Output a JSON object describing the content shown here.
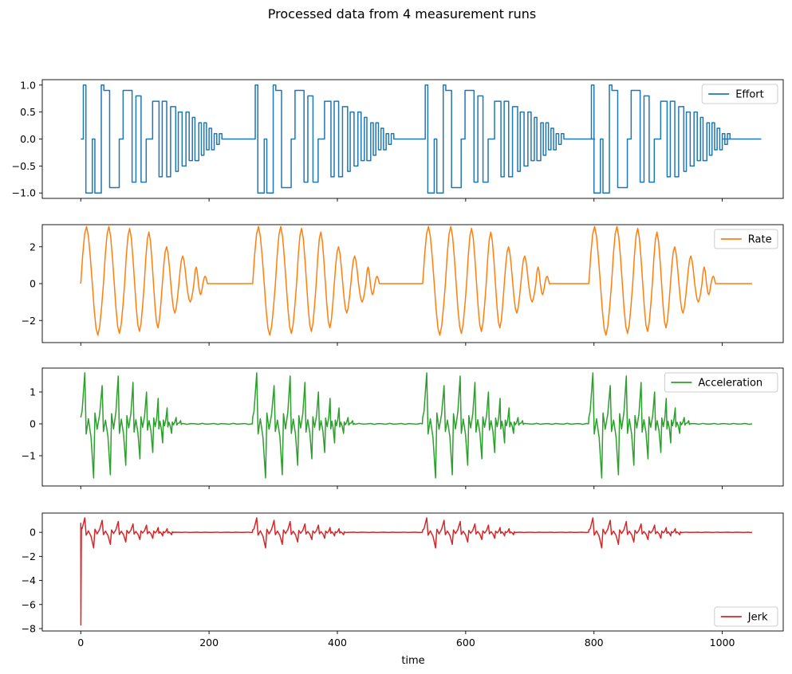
{
  "chart_data": {
    "type": "line",
    "title": "Processed data from 4 measurement runs",
    "xlabel": "time",
    "xlim": [
      -60,
      1095
    ],
    "xticks": [
      0,
      200,
      400,
      600,
      800,
      1000
    ],
    "xtick_labels": [
      "0",
      "200",
      "400",
      "600",
      "800",
      "1000"
    ],
    "runs": 4,
    "run_starts": [
      0,
      268,
      533,
      792
    ],
    "panels": [
      {
        "name": "Effort",
        "color": "#1f77b4",
        "ylim": [
          -1.1,
          1.1
        ],
        "yticks": [
          1.0,
          0.5,
          0.0,
          -0.5,
          -1.0
        ],
        "ytick_labels": [
          "1.0",
          "0.5",
          "0.0",
          "−0.5",
          "−1.0"
        ],
        "legend_loc": "upper right",
        "step": true,
        "run_x": [
          0,
          4,
          8,
          18,
          22,
          32,
          36,
          45,
          52,
          60,
          66,
          80,
          86,
          94,
          102,
          112,
          122,
          127,
          134,
          140,
          148,
          152,
          158,
          164,
          169,
          174,
          178,
          184,
          188,
          192,
          196,
          200,
          204,
          208,
          212,
          216,
          220,
          224,
          228,
          232,
          236,
          240,
          244,
          248,
          252,
          256,
          260,
          264
        ],
        "run_y": [
          0,
          1,
          -1,
          0,
          -1,
          1,
          0.9,
          -0.9,
          -0.9,
          0,
          0.9,
          -0.8,
          0.8,
          -0.8,
          0,
          0.7,
          -0.7,
          0.7,
          -0.7,
          0.6,
          -0.6,
          0.5,
          -0.5,
          0.5,
          -0.4,
          0.4,
          -0.4,
          0.3,
          -0.3,
          0.3,
          -0.2,
          0.2,
          -0.2,
          0.1,
          -0.1,
          0.1,
          0,
          0,
          0,
          0,
          0,
          0,
          0,
          0,
          0,
          0,
          0,
          0
        ],
        "trail_x": [
          1000,
          1047
        ],
        "trail_y": [
          0,
          0
        ]
      },
      {
        "name": "Rate",
        "color": "#ff7f0e",
        "ylim": [
          -3.2,
          3.2
        ],
        "yticks": [
          2,
          0,
          -2
        ],
        "ytick_labels": [
          "2",
          "0",
          "−2"
        ],
        "legend_loc": "upper right",
        "peaks": [
          3.1,
          -2.8,
          3.1,
          -2.7,
          3.0,
          -2.6,
          2.8,
          -2.4,
          2.0,
          -1.6,
          1.5,
          -1.0,
          0.9,
          -0.6,
          0.4,
          0.0
        ],
        "end_x": 1047
      },
      {
        "name": "Acceleration",
        "color": "#2ca02c",
        "ylim": [
          -1.95,
          1.75
        ],
        "yticks": [
          1,
          0,
          -1
        ],
        "ytick_labels": [
          "1",
          "0",
          "−1"
        ],
        "legend_loc": "upper right",
        "spikes": [
          1.6,
          -1.7,
          1.2,
          -1.6,
          1.5,
          -1.3,
          1.3,
          -1.1,
          1.0,
          -0.9,
          0.8,
          -0.6,
          0.5,
          -0.3,
          0.2,
          0.1
        ],
        "end_x": 1047
      },
      {
        "name": "Jerk",
        "color": "#d62728",
        "ylim": [
          -8.2,
          1.6
        ],
        "yticks": [
          0,
          -2,
          -4,
          -6,
          -8
        ],
        "ytick_labels": [
          "0",
          "−2",
          "−4",
          "−6",
          "−8"
        ],
        "legend_loc": "lower right",
        "initial_spike": [
          0.8,
          -7.7
        ],
        "spikes": [
          1.2,
          -1.3,
          1.0,
          -1.0,
          0.9,
          -0.8,
          0.7,
          -0.6,
          0.6,
          -0.5,
          0.4,
          -0.3,
          0.3,
          -0.2
        ],
        "end_x": 1047
      }
    ],
    "grid": false
  }
}
